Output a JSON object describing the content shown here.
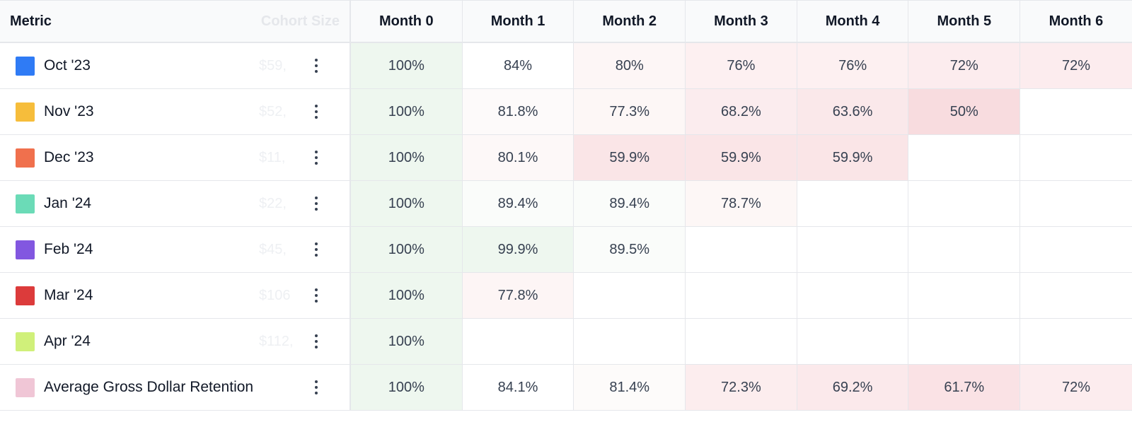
{
  "header": {
    "metric_label": "Metric",
    "cohort_size_label": "Cohort Size",
    "months": [
      "Month 0",
      "Month 1",
      "Month 2",
      "Month 3",
      "Month 4",
      "Month 5",
      "Month 6"
    ]
  },
  "rows": [
    {
      "name": "Oct '23",
      "color": "#2f7bf5",
      "cohort_size": "$59,",
      "cells": [
        "100%",
        "84%",
        "80%",
        "76%",
        "76%",
        "72%",
        "72%"
      ],
      "cell_colors": [
        "#eef7ef",
        "#ffffff",
        "#fdf6f6",
        "#fdf0f1",
        "#fdf0f1",
        "#fcecee",
        "#fcecee"
      ]
    },
    {
      "name": "Nov '23",
      "color": "#f6bd3b",
      "cohort_size": "$52,",
      "cells": [
        "100%",
        "81.8%",
        "77.3%",
        "68.2%",
        "63.6%",
        "50%",
        ""
      ],
      "cell_colors": [
        "#eef7ef",
        "#fdfafa",
        "#fdf7f6",
        "#fbecee",
        "#fae8ea",
        "#f8dcdf",
        "#ffffff"
      ]
    },
    {
      "name": "Dec '23",
      "color": "#f0704d",
      "cohort_size": "$11,",
      "cells": [
        "100%",
        "80.1%",
        "59.9%",
        "59.9%",
        "59.9%",
        "",
        ""
      ],
      "cell_colors": [
        "#eef7ef",
        "#fdf8f8",
        "#fae5e7",
        "#fae5e7",
        "#fae5e7",
        "#ffffff",
        "#ffffff"
      ]
    },
    {
      "name": "Jan '24",
      "color": "#6bdbb7",
      "cohort_size": "$22,",
      "cells": [
        "100%",
        "89.4%",
        "89.4%",
        "78.7%",
        "",
        "",
        ""
      ],
      "cell_colors": [
        "#eef7ef",
        "#fafcfa",
        "#fafcfa",
        "#fdf7f6",
        "#ffffff",
        "#ffffff",
        "#ffffff"
      ]
    },
    {
      "name": "Feb '24",
      "color": "#8257e0",
      "cohort_size": "$45,",
      "cells": [
        "100%",
        "99.9%",
        "89.5%",
        "",
        "",
        "",
        ""
      ],
      "cell_colors": [
        "#eef7ef",
        "#eef7ef",
        "#fafcfa",
        "#ffffff",
        "#ffffff",
        "#ffffff",
        "#ffffff"
      ]
    },
    {
      "name": "Mar '24",
      "color": "#dc3b3b",
      "cohort_size": "$106",
      "cells": [
        "100%",
        "77.8%",
        "",
        "",
        "",
        "",
        ""
      ],
      "cell_colors": [
        "#eef7ef",
        "#fdf5f5",
        "#ffffff",
        "#ffffff",
        "#ffffff",
        "#ffffff",
        "#ffffff"
      ]
    },
    {
      "name": "Apr '24",
      "color": "#d0f07a",
      "cohort_size": "$112,",
      "cells": [
        "100%",
        "",
        "",
        "",
        "",
        "",
        ""
      ],
      "cell_colors": [
        "#eef7ef",
        "#ffffff",
        "#ffffff",
        "#ffffff",
        "#ffffff",
        "#ffffff",
        "#ffffff"
      ]
    },
    {
      "name": "Average Gross Dollar Retention",
      "color": "#f0c6d6",
      "cohort_size": "",
      "cells": [
        "100%",
        "84.1%",
        "81.4%",
        "72.3%",
        "69.2%",
        "61.7%",
        "72%"
      ],
      "cell_colors": [
        "#eef7ef",
        "#ffffff",
        "#fdfbfa",
        "#fcedee",
        "#fbe9eb",
        "#fae2e5",
        "#fcecee"
      ]
    }
  ]
}
